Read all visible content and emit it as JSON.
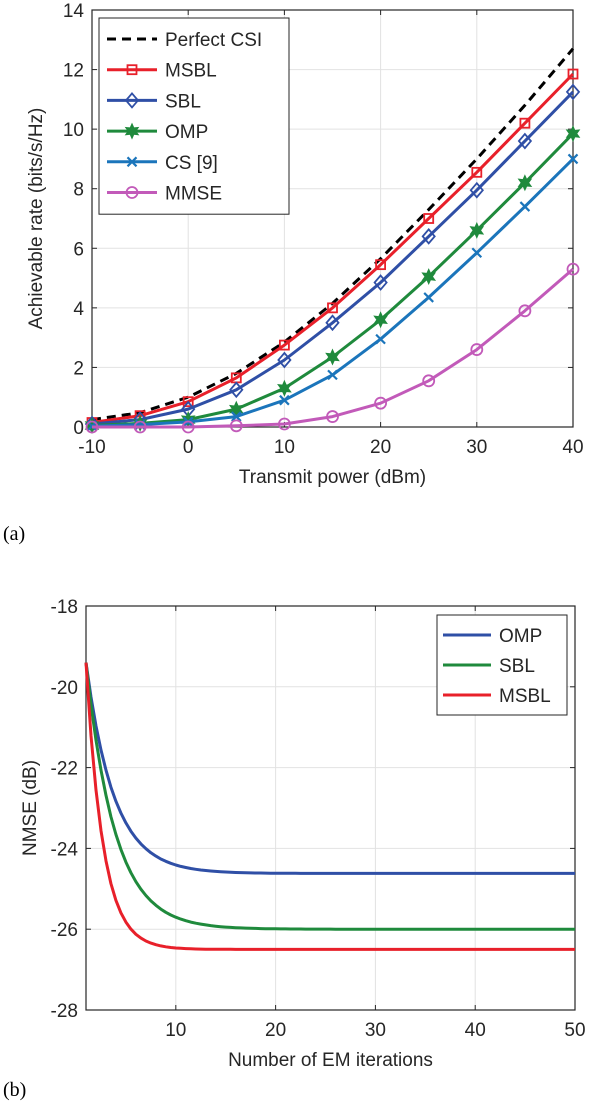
{
  "figure": {
    "panel_labels": [
      "(a)",
      "(b)"
    ]
  },
  "chart_data": [
    {
      "type": "line",
      "xlabel": "Transmit power (dBm)",
      "ylabel": "Achievable rate (bits/s/Hz)",
      "xlim": [
        -10,
        40
      ],
      "ylim": [
        0,
        14
      ],
      "xticks": [
        -10,
        0,
        10,
        20,
        30,
        40
      ],
      "yticks": [
        0,
        2,
        4,
        6,
        8,
        10,
        12,
        14
      ],
      "grid": true,
      "legend_position": "top-left",
      "x": [
        -10,
        -5,
        0,
        5,
        10,
        15,
        20,
        25,
        30,
        35,
        40
      ],
      "series": [
        {
          "name": "Perfect CSI",
          "color": "#000000",
          "dash": "dashed",
          "marker": "none",
          "values": [
            0.25,
            0.48,
            1.0,
            1.8,
            2.85,
            4.15,
            5.65,
            7.3,
            9.0,
            10.8,
            12.7
          ]
        },
        {
          "name": "MSBL",
          "color": "#e8202a",
          "dash": "solid",
          "marker": "square",
          "values": [
            0.15,
            0.38,
            0.85,
            1.65,
            2.75,
            4.0,
            5.45,
            7.0,
            8.55,
            10.2,
            11.85
          ]
        },
        {
          "name": "SBL",
          "color": "#2f4fa6",
          "dash": "solid",
          "marker": "diamond",
          "values": [
            0.1,
            0.25,
            0.6,
            1.25,
            2.25,
            3.5,
            4.85,
            6.4,
            7.95,
            9.6,
            11.25
          ]
        },
        {
          "name": "OMP",
          "color": "#1f8a3c",
          "dash": "solid",
          "marker": "hexagram",
          "values": [
            0.05,
            0.12,
            0.25,
            0.6,
            1.3,
            2.35,
            3.6,
            5.05,
            6.6,
            8.2,
            9.85
          ]
        },
        {
          "name": "CS [9]",
          "color": "#1b75bb",
          "dash": "solid",
          "marker": "x",
          "values": [
            0.03,
            0.08,
            0.17,
            0.35,
            0.9,
            1.75,
            2.95,
            4.35,
            5.85,
            7.4,
            9.0
          ]
        },
        {
          "name": "MMSE",
          "color": "#c25ab9",
          "dash": "solid",
          "marker": "circle",
          "values": [
            0.0,
            0.0,
            0.0,
            0.04,
            0.1,
            0.35,
            0.8,
            1.55,
            2.6,
            3.9,
            5.3
          ]
        }
      ]
    },
    {
      "type": "line",
      "xlabel": "Number of EM iterations",
      "ylabel": "NMSE (dB)",
      "xlim": [
        1,
        50
      ],
      "ylim": [
        -28,
        -18
      ],
      "xticks": [
        10,
        20,
        30,
        40,
        50
      ],
      "yticks": [
        -28,
        -26,
        -24,
        -22,
        -20,
        -18
      ],
      "grid": true,
      "legend_position": "top-right",
      "series": [
        {
          "name": "OMP",
          "color": "#2f4fa6",
          "start": -19.4,
          "final": -24.62,
          "tau": 2.8
        },
        {
          "name": "SBL",
          "color": "#1f8a3c",
          "start": -19.4,
          "final": -26.0,
          "tau": 2.9
        },
        {
          "name": "MSBL",
          "color": "#e8202a",
          "start": -19.4,
          "final": -26.5,
          "tau": 1.7
        }
      ]
    }
  ]
}
